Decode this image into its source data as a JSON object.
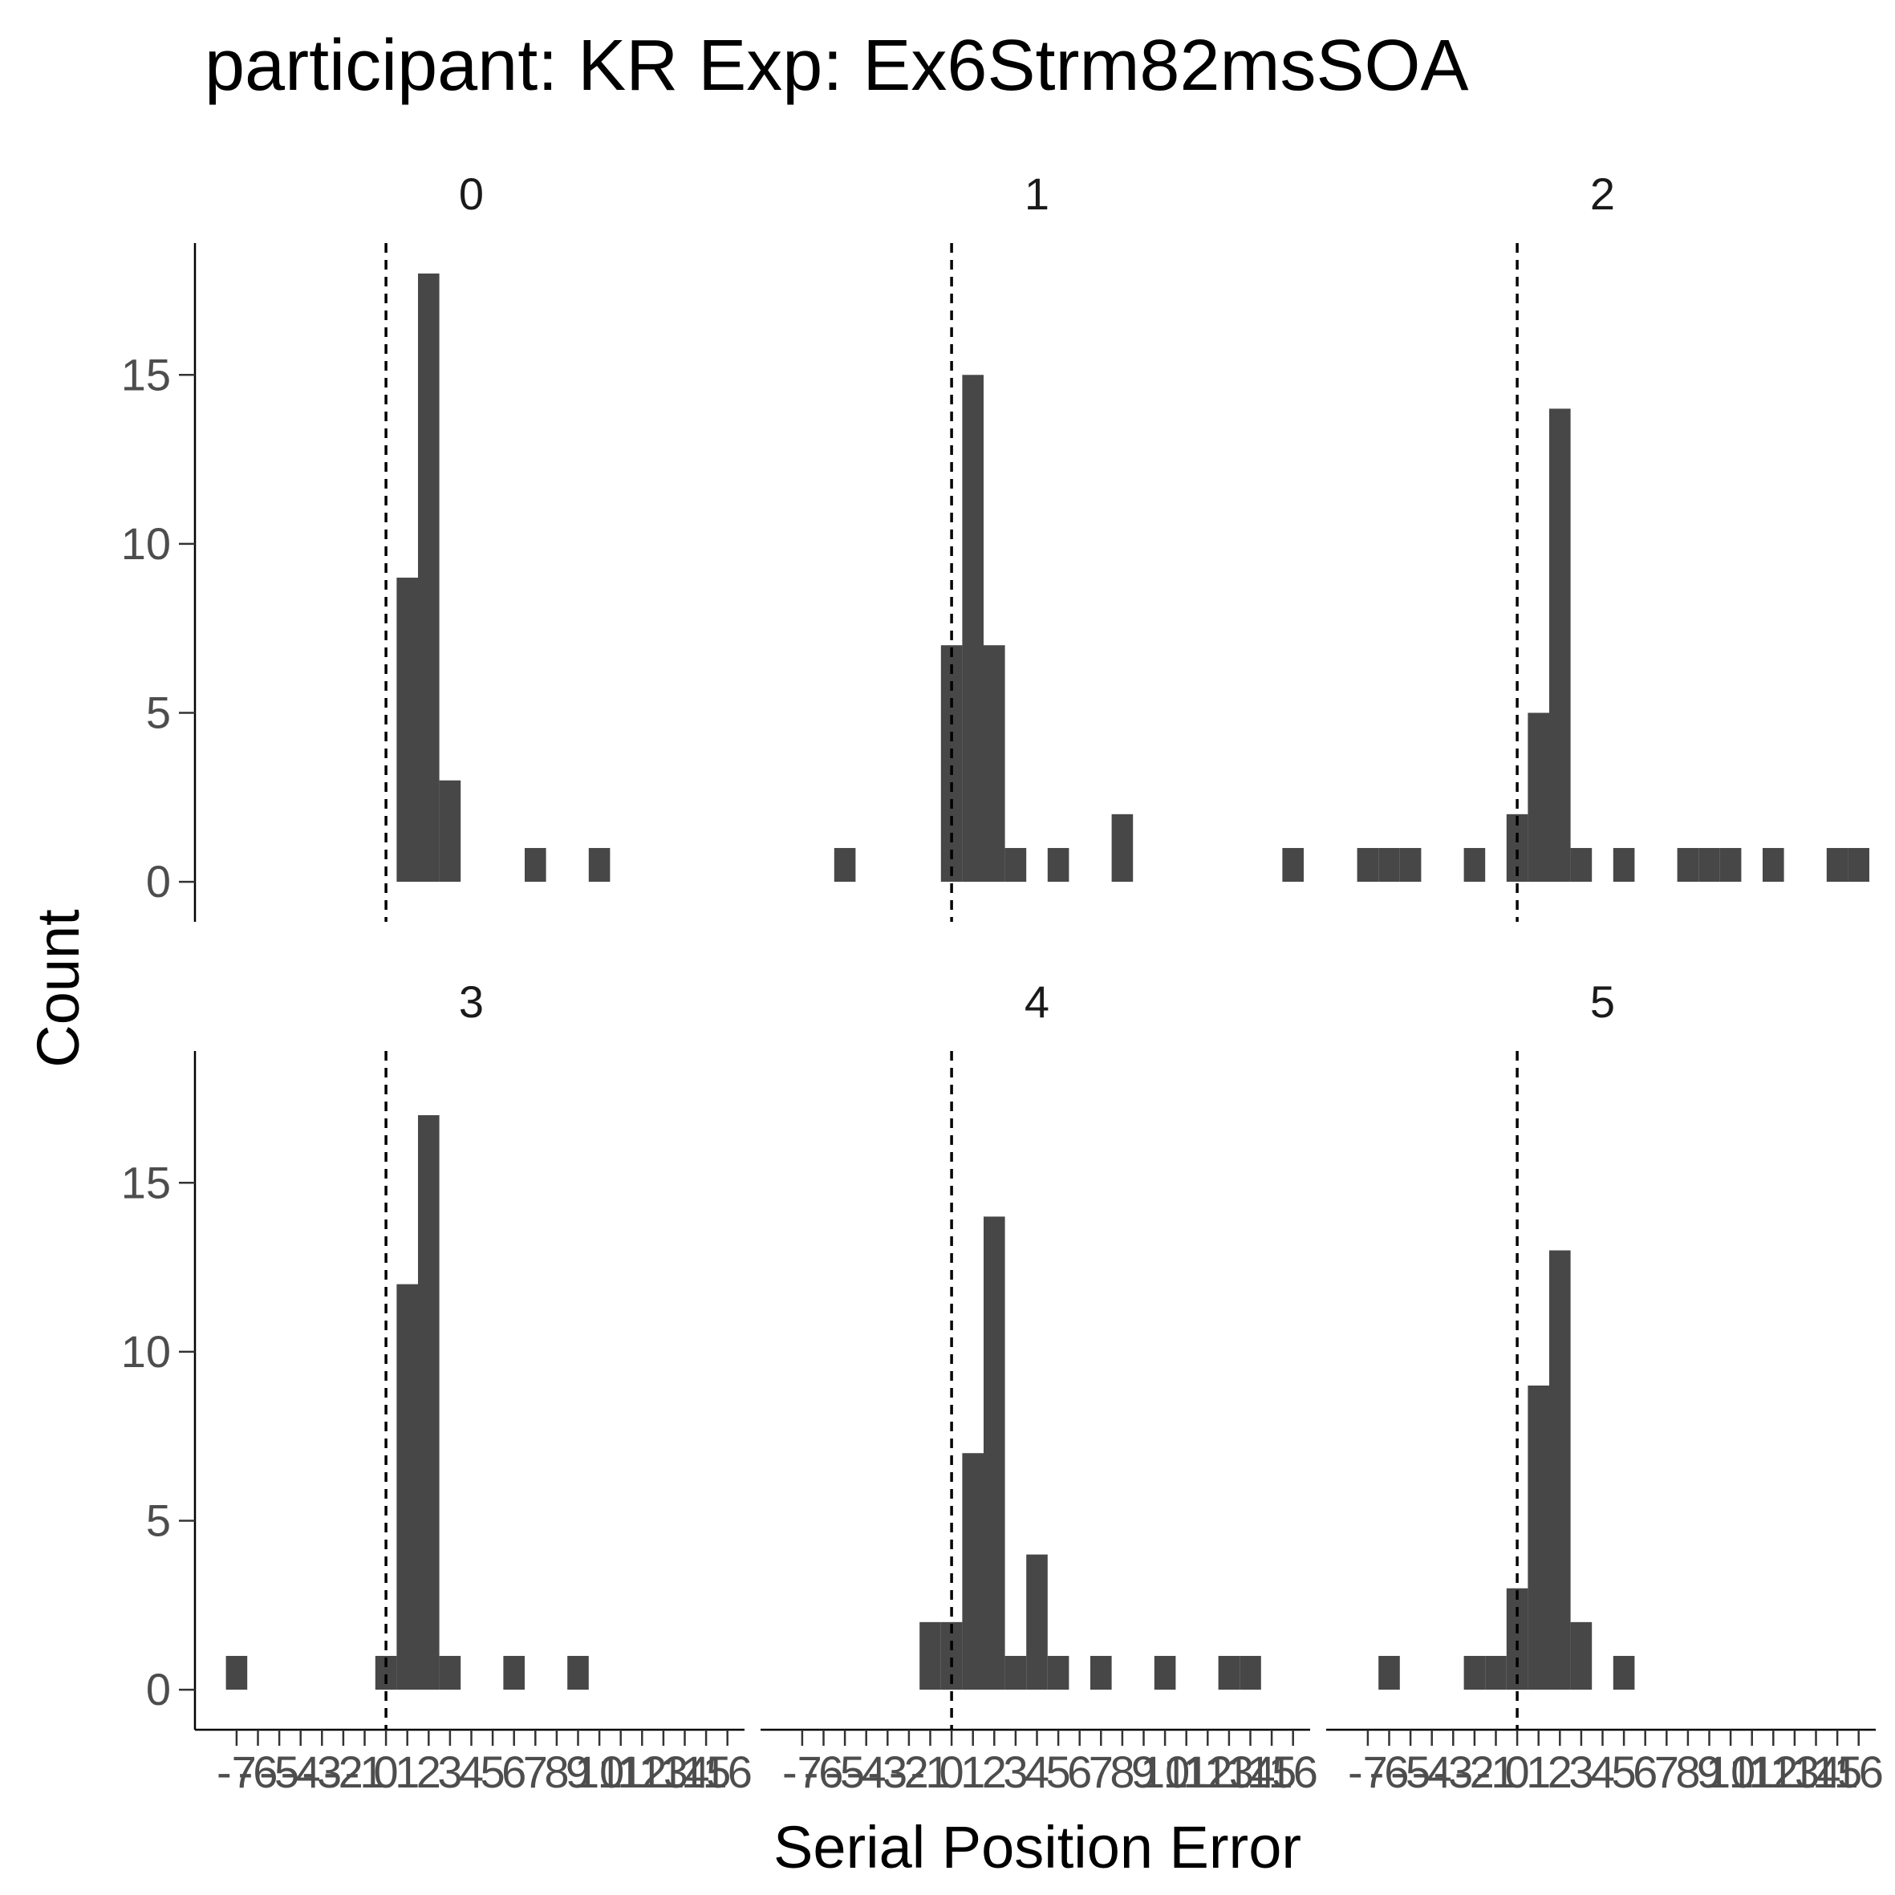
{
  "chart_data": {
    "type": "bar",
    "title": "participant: KR Exp: Ex6Strm82msSOA",
    "xlabel": "Serial Position Error",
    "ylabel": "Count",
    "x_range": [
      -8.5,
      16.5
    ],
    "ylim": [
      -0.9,
      18.9
    ],
    "y_ticks": [
      0,
      5,
      10,
      15
    ],
    "x_ticks": [
      -7,
      -6,
      -5,
      -4,
      -3,
      -2,
      -1,
      0,
      1,
      2,
      3,
      4,
      5,
      6,
      7,
      8,
      9,
      10,
      11,
      12,
      13,
      14,
      15,
      16
    ],
    "reference_line_x": 0,
    "bar_color": "#474747",
    "panels": [
      {
        "label": "0",
        "bars": [
          {
            "x": 1,
            "count": 9
          },
          {
            "x": 2,
            "count": 18
          },
          {
            "x": 3,
            "count": 3
          },
          {
            "x": 7,
            "count": 1
          },
          {
            "x": 10,
            "count": 1
          }
        ]
      },
      {
        "label": "1",
        "bars": [
          {
            "x": -5,
            "count": 1
          },
          {
            "x": 0,
            "count": 7
          },
          {
            "x": 1,
            "count": 15
          },
          {
            "x": 2,
            "count": 7
          },
          {
            "x": 3,
            "count": 1
          },
          {
            "x": 5,
            "count": 1
          },
          {
            "x": 8,
            "count": 2
          },
          {
            "x": 16,
            "count": 1
          }
        ]
      },
      {
        "label": "2",
        "bars": [
          {
            "x": -7,
            "count": 1
          },
          {
            "x": -6,
            "count": 1
          },
          {
            "x": -5,
            "count": 1
          },
          {
            "x": -2,
            "count": 1
          },
          {
            "x": 0,
            "count": 2
          },
          {
            "x": 1,
            "count": 5
          },
          {
            "x": 2,
            "count": 14
          },
          {
            "x": 3,
            "count": 1
          },
          {
            "x": 5,
            "count": 1
          },
          {
            "x": 8,
            "count": 1
          },
          {
            "x": 9,
            "count": 1
          },
          {
            "x": 10,
            "count": 1
          },
          {
            "x": 12,
            "count": 1
          },
          {
            "x": 15,
            "count": 1
          },
          {
            "x": 16,
            "count": 1
          }
        ]
      },
      {
        "label": "3",
        "bars": [
          {
            "x": -7,
            "count": 1
          },
          {
            "x": 0,
            "count": 1
          },
          {
            "x": 1,
            "count": 12
          },
          {
            "x": 2,
            "count": 17
          },
          {
            "x": 3,
            "count": 1
          },
          {
            "x": 6,
            "count": 1
          },
          {
            "x": 9,
            "count": 1
          }
        ]
      },
      {
        "label": "4",
        "bars": [
          {
            "x": -1,
            "count": 2
          },
          {
            "x": 0,
            "count": 2
          },
          {
            "x": 1,
            "count": 7
          },
          {
            "x": 2,
            "count": 14
          },
          {
            "x": 3,
            "count": 1
          },
          {
            "x": 4,
            "count": 4
          },
          {
            "x": 5,
            "count": 1
          },
          {
            "x": 7,
            "count": 1
          },
          {
            "x": 10,
            "count": 1
          },
          {
            "x": 13,
            "count": 1
          },
          {
            "x": 14,
            "count": 1
          }
        ]
      },
      {
        "label": "5",
        "bars": [
          {
            "x": -6,
            "count": 1
          },
          {
            "x": -2,
            "count": 1
          },
          {
            "x": -1,
            "count": 1
          },
          {
            "x": 0,
            "count": 3
          },
          {
            "x": 1,
            "count": 9
          },
          {
            "x": 2,
            "count": 13
          },
          {
            "x": 3,
            "count": 2
          },
          {
            "x": 5,
            "count": 1
          }
        ]
      }
    ]
  }
}
